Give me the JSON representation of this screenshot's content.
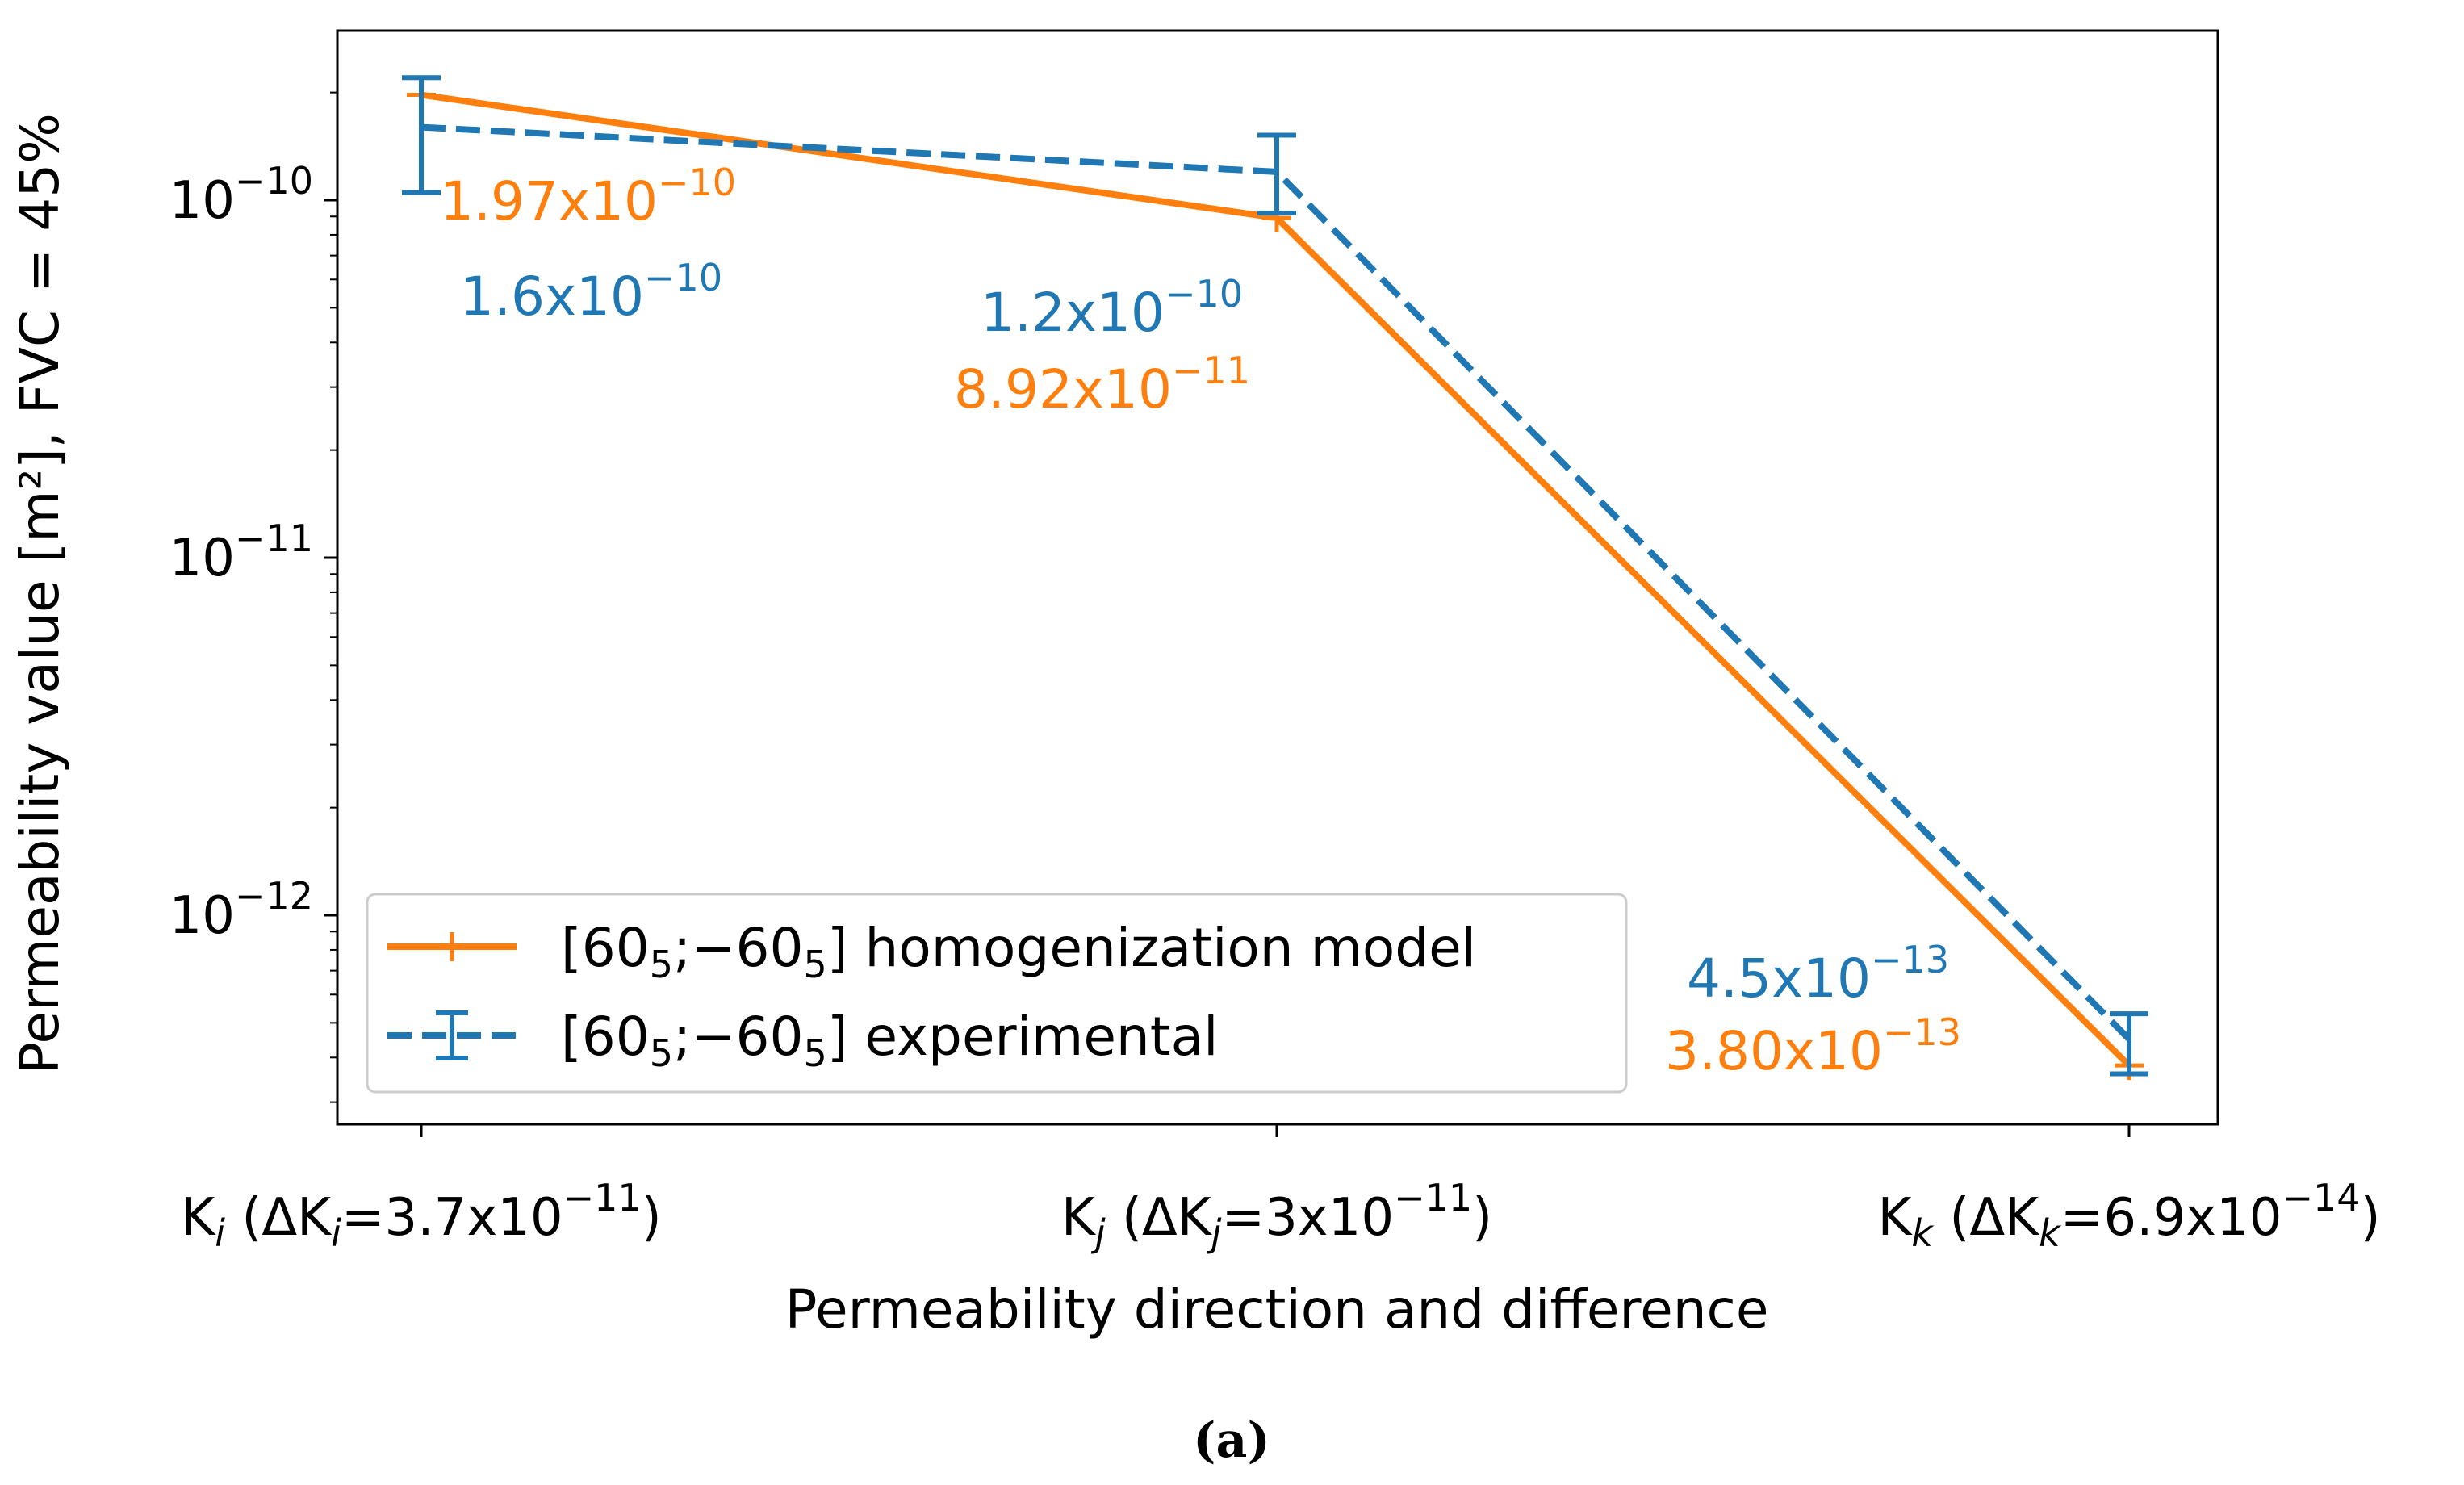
{
  "chart_data": {
    "type": "line",
    "yscale": "log",
    "xlabel": "Permeability direction and difference",
    "ylabel": "Permeability value [m²], FVC = 45%",
    "ylim": [
      3.2e-13,
      3e-10
    ],
    "grid": false,
    "legend_position": "lower-left",
    "caption": "(a)",
    "categories": [
      {
        "base": "K",
        "sub": "i",
        "delta_prefix": "(ΔK",
        "delta_sub": "i",
        "value": "=3.7x10",
        "exp": "−11",
        "close": ")"
      },
      {
        "base": "K",
        "sub": "j",
        "delta_prefix": "(ΔK",
        "delta_sub": "j",
        "value": "=3x10",
        "exp": "−11",
        "close": ")"
      },
      {
        "base": "K",
        "sub": "k",
        "delta_prefix": "(ΔK",
        "delta_sub": "k",
        "value": "=6.9x10",
        "exp": "−14",
        "close": ")"
      }
    ],
    "y_ticks": [
      {
        "value": 1e-10,
        "base": "10",
        "exp": "−10"
      },
      {
        "value": 1e-11,
        "base": "10",
        "exp": "−11"
      },
      {
        "value": 1e-12,
        "base": "10",
        "exp": "−12"
      }
    ],
    "series": [
      {
        "name": "homogenization",
        "legend": {
          "pre": "[60",
          "sub1": "5",
          "mid": ";−60",
          "sub2": "5",
          "post": "] homogenization model"
        },
        "color": "#ff7f0e",
        "dash": "solid",
        "values": [
          1.97e-10,
          8.92e-11,
          3.8e-13
        ],
        "labels": [
          {
            "mantissa": "1.97x10",
            "exp": "−10"
          },
          {
            "mantissa": "8.92x10",
            "exp": "−11"
          },
          {
            "mantissa": "3.80x10",
            "exp": "−13"
          }
        ]
      },
      {
        "name": "experimental",
        "legend": {
          "pre": "[60",
          "sub1": "5",
          "mid": ";−60",
          "sub2": "5",
          "post": "] experimental"
        },
        "color": "#1f77b4",
        "dash": "dashed",
        "values": [
          1.6e-10,
          1.2e-10,
          4.5e-13
        ],
        "error_low": [
          1.05e-10,
          9.2e-11,
          3.6e-13
        ],
        "error_high": [
          2.2e-10,
          1.52e-10,
          5.3e-13
        ],
        "labels": [
          {
            "mantissa": "1.6x10",
            "exp": "−10"
          },
          {
            "mantissa": "1.2x10",
            "exp": "−10"
          },
          {
            "mantissa": "4.5x10",
            "exp": "−13"
          }
        ]
      }
    ]
  }
}
